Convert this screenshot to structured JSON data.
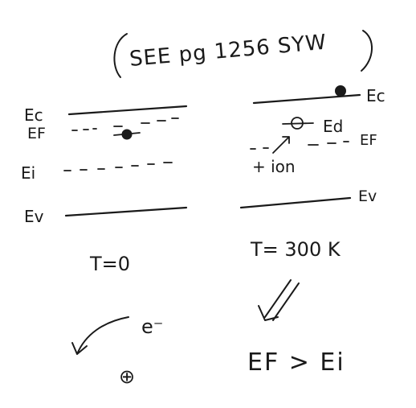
{
  "note": {
    "open_paren": "(",
    "text": "SEE pg 1256 SYW",
    "close_paren": ")"
  },
  "left_diagram": {
    "ec_label": "Ec",
    "ef_label": "EF",
    "ei_label": "Ei",
    "ev_label": "Ev",
    "temperature": "T=0"
  },
  "right_diagram": {
    "ec_label": "Ec",
    "ed_label": "Ed",
    "ef_label": "EF",
    "ion_label": "+ ion",
    "ev_label": "Ev",
    "temperature": "T= 300 K"
  },
  "bottom": {
    "electron_label": "e⁻",
    "hole_symbol": "⊕",
    "conclusion": "EF > Ei"
  },
  "colors": {
    "ink": "#1a1a1a",
    "paper": "#ffffff"
  }
}
